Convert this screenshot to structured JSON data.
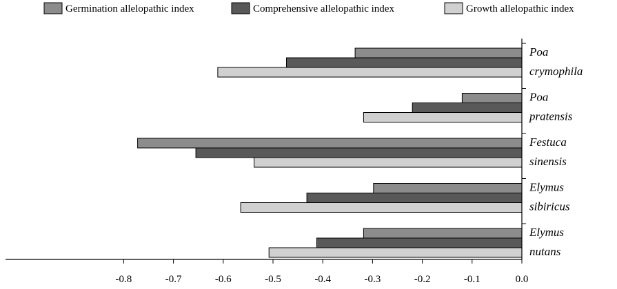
{
  "chart_data": {
    "type": "bar",
    "orientation": "horizontal",
    "title": "",
    "xlabel": "",
    "ylabel": "",
    "categories": [
      [
        "Poa",
        "crymophila"
      ],
      [
        "Poa",
        "pratensis"
      ],
      [
        "Festuca",
        "sinensis"
      ],
      [
        "Elymus",
        "sibiricus"
      ],
      [
        "Elymus",
        "nutans"
      ]
    ],
    "series": [
      {
        "name": "Germination allelopathic index",
        "color": "#8c8c8c",
        "values": [
          -0.335,
          -0.12,
          -0.772,
          -0.298,
          -0.318
        ]
      },
      {
        "name": "Comprehensive allelopathic index",
        "color": "#595959",
        "values": [
          -0.473,
          -0.22,
          -0.655,
          -0.432,
          -0.412
        ]
      },
      {
        "name": "Growth allelopathic index",
        "color": "#d0d0d0",
        "values": [
          -0.611,
          -0.318,
          -0.538,
          -0.565,
          -0.508
        ]
      }
    ],
    "xlim": [
      -0.82,
      0.0
    ],
    "xticks": [
      "-0.8",
      "-0.7",
      "-0.6",
      "-0.5",
      "-0.4",
      "-0.3",
      "-0.2",
      "-0.1",
      "0.0"
    ],
    "xtick_values": [
      -0.8,
      -0.7,
      -0.6,
      -0.5,
      -0.4,
      -0.3,
      -0.2,
      -0.1,
      0.0
    ],
    "grid": false,
    "legend_position": "top"
  }
}
